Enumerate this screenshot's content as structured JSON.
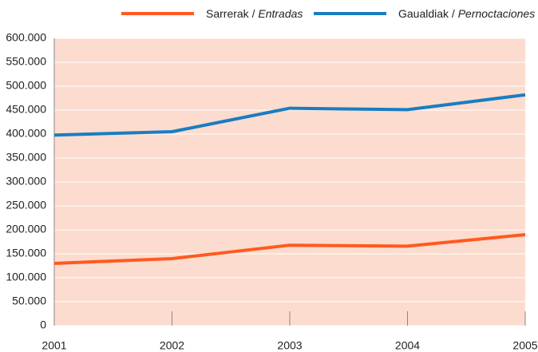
{
  "chart_data": {
    "type": "line",
    "x": [
      2001,
      2002,
      2003,
      2004,
      2005
    ],
    "xlim": [
      2001,
      2005
    ],
    "xticks": [
      2001,
      2002,
      2003,
      2004,
      2005
    ],
    "ylim": [
      0,
      600000
    ],
    "yticks": [
      0,
      {
        "value": 50000,
        "label": "50.000"
      },
      {
        "value": 100000,
        "label": "100.000"
      },
      {
        "value": 150000,
        "label": "150.000"
      },
      {
        "value": 200000,
        "label": "200.000"
      },
      {
        "value": 250000,
        "label": "250.000"
      },
      {
        "value": 300000,
        "label": "300.000"
      },
      {
        "value": 350000,
        "label": "350.000"
      },
      {
        "value": 400000,
        "label": "400.000"
      },
      {
        "value": 450000,
        "label": "450.000"
      },
      {
        "value": 500000,
        "label": "500.000"
      },
      {
        "value": 550000,
        "label": "550.000"
      },
      {
        "value": 600000,
        "label": "600.000"
      }
    ],
    "grid": true,
    "legend": "top",
    "background": "#fcdccf",
    "series": [
      {
        "name": "Sarrerak / Entradas",
        "color": "#ff5a1f",
        "values": [
          130000,
          140000,
          168000,
          166000,
          190000
        ]
      },
      {
        "name": "Gaualdiak / Pernoctaciones",
        "color": "#1a7dc0",
        "values": [
          398000,
          405000,
          454000,
          451000,
          482000
        ]
      }
    ]
  }
}
